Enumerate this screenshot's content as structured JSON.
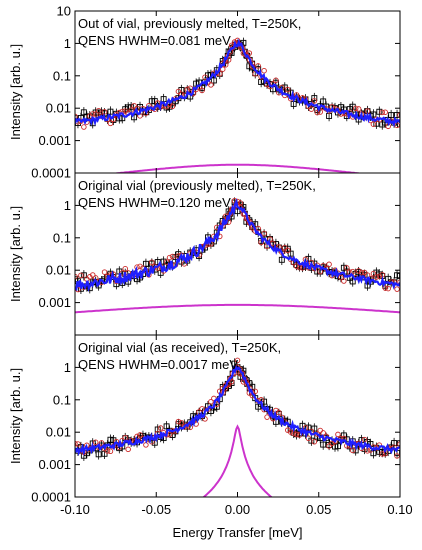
{
  "chart_data": [
    {
      "type": "line",
      "annotation_lines": [
        "Out of vial, previously melted, T=250K,",
        "QENS HWHM=0.081 meV"
      ],
      "ylabel": "Intensity [arb. u.]",
      "xlim": [
        -0.1,
        0.1
      ],
      "ylim": [
        0.0001,
        10
      ],
      "yscale": "log",
      "y_tick_labels": [
        "0.0001",
        "0.001",
        "0.01",
        "0.1",
        "1",
        "10"
      ],
      "elastic_peak_height": 1.0,
      "elastic_hwhm": 0.005,
      "quasielastic_hwhm": 0.081,
      "quasielastic_amplitude": 0.00018,
      "series": [
        {
          "color": "#000000",
          "marker": "open-square",
          "background": 0.0016,
          "slope": -0.002
        },
        {
          "color": "#cc2a2a",
          "marker": "open-circle",
          "background": 0.0015,
          "slope": -0.002
        },
        {
          "color": "#1f1fff",
          "marker": "line",
          "background": 0.0011,
          "slope": -0.001
        },
        {
          "color": "#cc33cc",
          "marker": "line",
          "background": 0.0,
          "slope": 0
        }
      ]
    },
    {
      "type": "line",
      "annotation_lines": [
        "Original vial (previously melted), T=250K,",
        "QENS HWHM=0.120 meV"
      ],
      "ylabel": "Intensity [arb. u.]",
      "xlim": [
        -0.1,
        0.1
      ],
      "ylim": [
        0.0001,
        10
      ],
      "yscale": "log",
      "y_tick_labels": [
        "0.0001",
        "0.001",
        "0.01",
        "0.1",
        "1",
        "10"
      ],
      "elastic_peak_height": 1.0,
      "elastic_hwhm": 0.005,
      "quasielastic_hwhm": 0.12,
      "quasielastic_amplitude": 0.00085,
      "series": [
        {
          "color": "#000000",
          "marker": "open-square",
          "background": 0.0011,
          "slope": 0.003
        },
        {
          "color": "#cc2a2a",
          "marker": "open-circle",
          "background": 0.0011,
          "slope": 0.003
        },
        {
          "color": "#1f1fff",
          "marker": "line",
          "background": 0.0005,
          "slope": 0.004
        },
        {
          "color": "#cc33cc",
          "marker": "line",
          "background": 0.0,
          "slope": 0
        }
      ]
    },
    {
      "type": "line",
      "annotation_lines": [
        "Original vial (as received), T=250K,",
        "QENS HWHM=0.0017 meV"
      ],
      "ylabel": "Intensity [arb. u.]",
      "xlabel": "Energy Transfer [meV]",
      "xlim": [
        -0.1,
        0.1
      ],
      "ylim": [
        0.0001,
        10
      ],
      "yscale": "log",
      "x_tick_labels": [
        "-0.10",
        "-0.05",
        "0.00",
        "0.05",
        "0.10"
      ],
      "y_tick_labels": [
        "0.0001",
        "0.001",
        "0.01",
        "0.1",
        "1",
        "10"
      ],
      "elastic_peak_height": 1.0,
      "elastic_hwhm": 0.004,
      "quasielastic_hwhm": 0.0017,
      "quasielastic_amplitude": 0.015,
      "series": [
        {
          "color": "#000000",
          "marker": "open-square",
          "background": 0.0012,
          "slope": 0.004
        },
        {
          "color": "#cc2a2a",
          "marker": "open-circle",
          "background": 0.0012,
          "slope": 0.004
        },
        {
          "color": "#1f1fff",
          "marker": "line",
          "background": 0.0012,
          "slope": 0.004
        },
        {
          "color": "#cc33cc",
          "marker": "line",
          "background": 0.0,
          "slope": 0
        }
      ]
    }
  ]
}
